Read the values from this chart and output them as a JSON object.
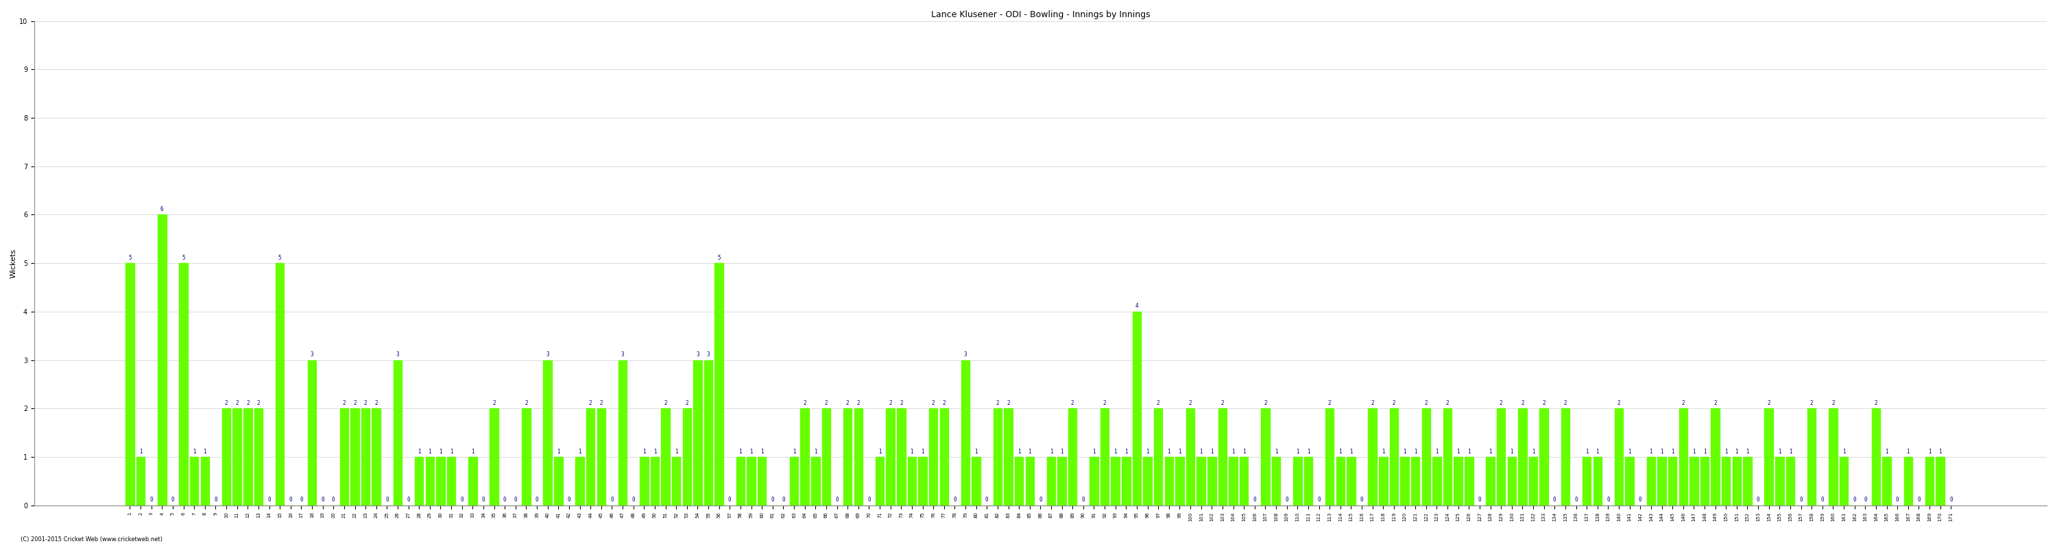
{
  "title": "Lance Klusener - ODI - Bowling - Innings by Innings",
  "ylabel": "Wickets",
  "bar_color": "#66ff00",
  "label_color": "#000080",
  "background_color": "#ffffff",
  "grid_color": "#cccccc",
  "ylim": [
    0,
    10
  ],
  "yticks": [
    0,
    1,
    2,
    3,
    4,
    5,
    6,
    7,
    8,
    9,
    10
  ],
  "wickets": [
    5,
    1,
    0,
    6,
    0,
    5,
    1,
    1,
    0,
    2,
    2,
    2,
    2,
    0,
    5,
    0,
    0,
    3,
    0,
    0,
    2,
    2,
    2,
    2,
    0,
    3,
    0,
    1,
    1,
    1,
    1,
    0,
    1,
    0,
    2,
    0,
    0,
    2,
    0,
    3,
    1,
    0,
    1,
    2,
    2,
    0,
    3,
    0,
    1,
    1,
    2,
    1,
    2,
    3,
    3,
    5,
    0,
    1,
    1,
    1,
    0,
    0,
    1,
    2,
    1,
    2,
    0,
    2,
    2,
    0,
    1,
    2,
    2,
    1,
    1,
    2,
    2,
    0,
    3,
    1,
    0,
    2,
    2,
    1,
    1,
    0,
    1,
    1,
    2,
    0,
    1,
    2,
    1,
    1,
    4,
    1,
    2,
    1,
    1,
    2,
    1,
    1,
    2,
    1,
    1,
    0,
    2,
    1,
    0,
    1,
    1,
    0,
    2,
    1,
    1,
    0,
    2,
    1,
    2,
    1,
    1,
    2,
    1,
    2,
    1,
    1,
    0,
    1,
    2,
    1,
    2,
    1,
    2,
    0,
    2,
    0,
    1,
    1,
    0,
    2,
    1,
    0,
    1,
    1,
    1,
    2,
    1,
    1,
    2,
    1,
    1,
    1,
    0,
    2,
    1,
    1,
    0,
    2,
    0,
    2,
    1,
    0,
    0,
    2,
    1,
    0,
    1,
    0,
    1,
    1,
    0
  ],
  "footer": "(C) 2001-2015 Cricket Web (www.cricketweb.net)"
}
